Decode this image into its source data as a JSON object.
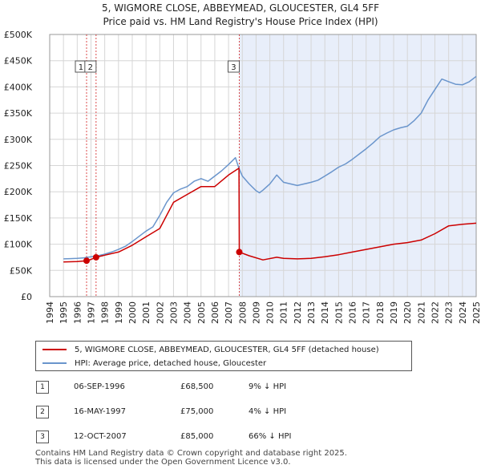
{
  "title_line1": "5, WIGMORE CLOSE, ABBEYMEAD, GLOUCESTER, GL4 5FF",
  "title_line2": "Price paid vs. HM Land Registry's House Price Index (HPI)",
  "colors": {
    "property": "#cc0000",
    "hpi": "#6a95cc",
    "shade": "#e8eefa",
    "grid": "#d6d6d6",
    "vline": "#cc0000"
  },
  "legend": {
    "property_label": "5, WIGMORE CLOSE, ABBEYMEAD, GLOUCESTER, GL4 5FF (detached house)",
    "hpi_label": "HPI: Average price, detached house, Gloucester"
  },
  "transactions": [
    {
      "num": "1",
      "date": "06-SEP-1996",
      "price": "£68,500",
      "diff": "9% ↓ HPI"
    },
    {
      "num": "2",
      "date": "16-MAY-1997",
      "price": "£75,000",
      "diff": "4% ↓ HPI"
    },
    {
      "num": "3",
      "date": "12-OCT-2007",
      "price": "£85,000",
      "diff": "66% ↓ HPI"
    }
  ],
  "footer_line1": "Contains HM Land Registry data © Crown copyright and database right 2025.",
  "footer_line2": "This data is licensed under the Open Government Licence v3.0.",
  "chart_data": {
    "type": "line",
    "title": "5, WIGMORE CLOSE, ABBEYMEAD, GLOUCESTER, GL4 5FF",
    "subtitle": "Price paid vs. HM Land Registry's House Price Index (HPI)",
    "xlabel": "",
    "ylabel": "",
    "xlim": [
      1994,
      2025
    ],
    "ylim": [
      0,
      500000
    ],
    "grid": true,
    "legend_position": "below",
    "y_ticks": [
      0,
      50000,
      100000,
      150000,
      200000,
      250000,
      300000,
      350000,
      400000,
      450000,
      500000
    ],
    "y_tick_labels": [
      "£0",
      "£50K",
      "£100K",
      "£150K",
      "£200K",
      "£250K",
      "£300K",
      "£350K",
      "£400K",
      "£450K",
      "£500K"
    ],
    "x_ticks": [
      1994,
      1995,
      1996,
      1997,
      1998,
      1999,
      2000,
      2001,
      2002,
      2003,
      2004,
      2005,
      2006,
      2007,
      2008,
      2009,
      2010,
      2011,
      2012,
      2013,
      2014,
      2015,
      2016,
      2017,
      2018,
      2019,
      2020,
      2021,
      2022,
      2023,
      2024,
      2025
    ],
    "x_tick_labels": [
      "1994",
      "1995",
      "1996",
      "1997",
      "1998",
      "1999",
      "2000",
      "2001",
      "2002",
      "2003",
      "2004",
      "2005",
      "2006",
      "2007",
      "2008",
      "2009",
      "2010",
      "2011",
      "2012",
      "2013",
      "2014",
      "2015",
      "2016",
      "2017",
      "2018",
      "2019",
      "2020",
      "2021",
      "2022",
      "2023",
      "2024",
      "2025"
    ],
    "shaded_region": [
      2007.78,
      2025
    ],
    "markers": [
      {
        "label": "1",
        "x": 1996.68,
        "y": 68500
      },
      {
        "label": "2",
        "x": 1997.37,
        "y": 75000
      },
      {
        "label": "3",
        "x": 2007.78,
        "y": 85000
      }
    ],
    "series": [
      {
        "name": "HPI: Average price, detached house, Gloucester",
        "x": [
          1995,
          1995.5,
          1996,
          1996.5,
          1997,
          1997.5,
          1998,
          1998.5,
          1999,
          1999.5,
          2000,
          2000.5,
          2001,
          2001.5,
          2002,
          2002.5,
          2003,
          2003.5,
          2004,
          2004.5,
          2005,
          2005.5,
          2006,
          2006.5,
          2007,
          2007.5,
          2007.75,
          2008,
          2008.5,
          2009,
          2009.25,
          2009.5,
          2010,
          2010.5,
          2011,
          2011.5,
          2012,
          2012.5,
          2013,
          2013.5,
          2014,
          2014.5,
          2015,
          2015.5,
          2016,
          2016.5,
          2017,
          2017.5,
          2018,
          2018.5,
          2019,
          2019.5,
          2020,
          2020.5,
          2021,
          2021.5,
          2022,
          2022.5,
          2023,
          2023.5,
          2024,
          2024.5,
          2025
        ],
        "values": [
          72000,
          72500,
          73000,
          74000,
          76000,
          78000,
          81000,
          85000,
          90000,
          96000,
          105000,
          115000,
          125000,
          133000,
          155000,
          180000,
          198000,
          205000,
          210000,
          220000,
          225000,
          220000,
          230000,
          240000,
          252000,
          265000,
          245000,
          230000,
          215000,
          202000,
          198000,
          203000,
          215000,
          232000,
          218000,
          215000,
          212000,
          215000,
          218000,
          222000,
          230000,
          238000,
          247000,
          253000,
          262000,
          272000,
          282000,
          293000,
          305000,
          312000,
          318000,
          322000,
          325000,
          336000,
          350000,
          375000,
          395000,
          415000,
          410000,
          405000,
          404000,
          410000,
          420000
        ]
      },
      {
        "name": "5, WIGMORE CLOSE, ABBEYMEAD, GLOUCESTER, GL4 5FF (detached house)",
        "x": [
          1995,
          1996,
          1996.68,
          1997.0,
          1997.37,
          1998,
          1999,
          2000,
          2001,
          2002,
          2003,
          2004,
          2005,
          2006,
          2007,
          2007.76,
          2007.78,
          2008.5,
          2009.5,
          2010.5,
          2011,
          2012,
          2013,
          2014,
          2015,
          2016,
          2017,
          2018,
          2019,
          2020,
          2021,
          2022,
          2023,
          2024,
          2025
        ],
        "values": [
          66000,
          67000,
          68500,
          71000,
          75000,
          79000,
          85000,
          98000,
          114000,
          130000,
          180000,
          195000,
          210000,
          210000,
          232000,
          245000,
          85000,
          78000,
          70000,
          75000,
          73000,
          72000,
          73000,
          76000,
          80000,
          85000,
          90000,
          95000,
          100000,
          103000,
          108000,
          120000,
          135000,
          138000,
          140000
        ]
      }
    ]
  }
}
